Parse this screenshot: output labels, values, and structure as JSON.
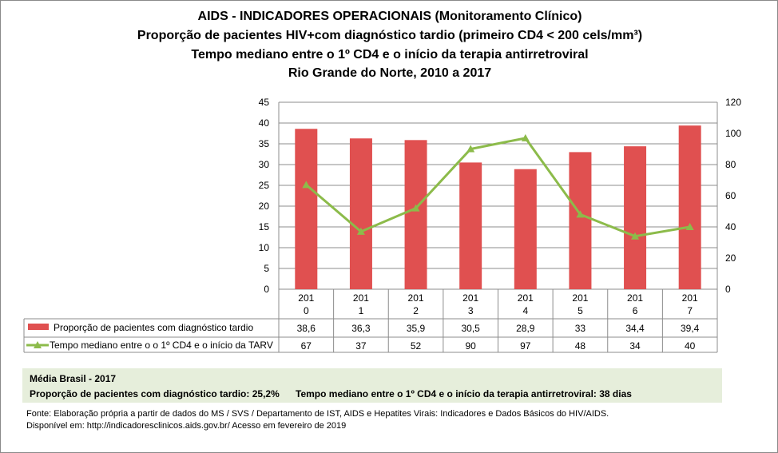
{
  "titles": [
    "AIDS - INDICADORES OPERACIONAIS (Monitoramento Clínico)",
    "Proporção de pacientes HIV+com diagnóstico tardio (primeiro CD4 < 200 cels/mm³)",
    "Tempo mediano entre o 1º CD4 e o início da terapia antirretroviral",
    "Rio Grande do Norte, 2010 a 2017"
  ],
  "chart_data": {
    "type": "bar+line",
    "categories": [
      "2010",
      "2011",
      "2012",
      "2013",
      "2014",
      "2015",
      "2016",
      "2017"
    ],
    "category_labels": [
      [
        "201",
        "0"
      ],
      [
        "201",
        "1"
      ],
      [
        "201",
        "2"
      ],
      [
        "201",
        "3"
      ],
      [
        "201",
        "4"
      ],
      [
        "201",
        "5"
      ],
      [
        "201",
        "6"
      ],
      [
        "201",
        "7"
      ]
    ],
    "series": [
      {
        "name": "Proporção de pacientes com diagnóstico tardio",
        "type": "bar",
        "axis": "left",
        "color": "#e05050",
        "values": [
          38.6,
          36.3,
          35.9,
          30.5,
          28.9,
          33,
          34.4,
          39.4
        ],
        "labels": [
          "38,6",
          "36,3",
          "35,9",
          "30,5",
          "28,9",
          "33",
          "34,4",
          "39,4"
        ]
      },
      {
        "name": "Tempo mediano entre o o 1º CD4 e o início da TARV",
        "type": "line",
        "marker": "triangle",
        "axis": "right",
        "color": "#8cbb4a",
        "values": [
          67,
          37,
          52,
          90,
          97,
          48,
          34,
          40
        ],
        "labels": [
          "67",
          "37",
          "52",
          "90",
          "97",
          "48",
          "34",
          "40"
        ]
      }
    ],
    "y_left": {
      "range": [
        0,
        45
      ],
      "ticks": [
        "0",
        "5",
        "10",
        "15",
        "20",
        "25",
        "30",
        "35",
        "40",
        "45"
      ]
    },
    "y_right": {
      "range": [
        0,
        120
      ],
      "ticks": [
        "0",
        "20",
        "40",
        "60",
        "80",
        "100",
        "120"
      ]
    },
    "grid": true,
    "legend": "data-table"
  },
  "media": {
    "title": "Média Brasil - 2017",
    "prop": "Proporção de pacientes com diagnóstico  tardio: 25,2%",
    "tempo": "Tempo mediano entre o 1º CD4 e o início da terapia antirretroviral: 38 dias"
  },
  "footer": [
    "Fonte: Elaboração própria a partir de dados do  MS / SVS / Departamento de IST, AIDS e Hepatites Virais: Indicadores e Dados Básicos do HIV/AIDS.",
    "Disponível em: http://indicadoresclinicos.aids.gov.br/ Acesso em fevereiro de 2019"
  ]
}
